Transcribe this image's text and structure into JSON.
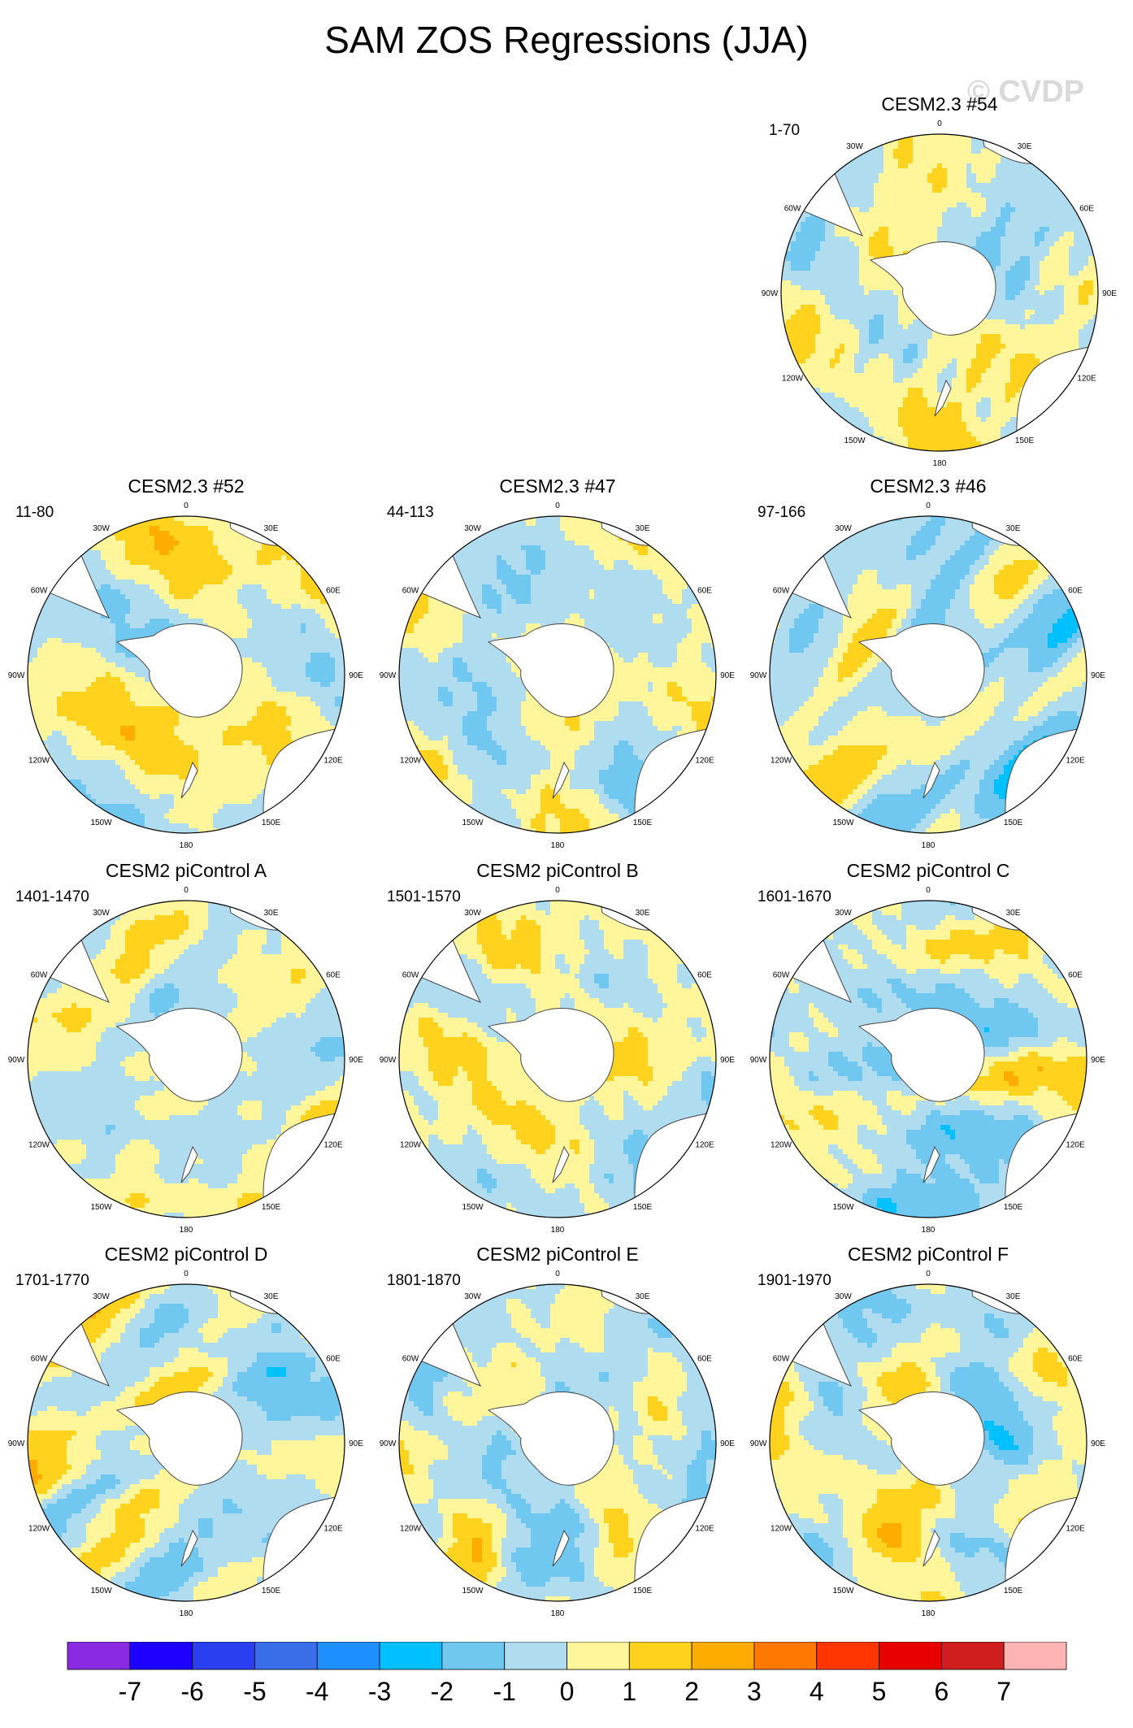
{
  "page_title": "SAM ZOS Regressions (JJA)",
  "watermark": "© CVDP",
  "chart_data": {
    "type": "heatmap",
    "title": "SAM ZOS Regressions (JJA)",
    "projection": "south-polar-stereographic",
    "longitude_labels": [
      "0",
      "30E",
      "60E",
      "90E",
      "120E",
      "150E",
      "180",
      "150W",
      "120W",
      "90W",
      "60W",
      "30W"
    ],
    "panels": [
      {
        "name": "CESM2.3 #54",
        "years": "1-70",
        "dominant": "mixed",
        "seed": 11
      },
      {
        "name": "CESM2.3 #52",
        "years": "11-80",
        "dominant": "positive",
        "seed": 23
      },
      {
        "name": "CESM2.3 #47",
        "years": "44-113",
        "dominant": "mixed",
        "seed": 37
      },
      {
        "name": "CESM2.3 #46",
        "years": "97-166",
        "dominant": "negative",
        "seed": 41
      },
      {
        "name": "CESM2 piControl A",
        "years": "1401-1470",
        "dominant": "mixed",
        "seed": 53
      },
      {
        "name": "CESM2 piControl B",
        "years": "1501-1570",
        "dominant": "positive",
        "seed": 67
      },
      {
        "name": "CESM2 piControl C",
        "years": "1601-1670",
        "dominant": "negative",
        "seed": 71
      },
      {
        "name": "CESM2 piControl D",
        "years": "1701-1770",
        "dominant": "mixed",
        "seed": 83
      },
      {
        "name": "CESM2 piControl E",
        "years": "1801-1870",
        "dominant": "negative",
        "seed": 97
      },
      {
        "name": "CESM2 piControl F",
        "years": "1901-1970",
        "dominant": "mixed",
        "seed": 101
      }
    ],
    "colorbar": {
      "levels": [
        -7,
        -6,
        -5,
        -4,
        -3,
        -2,
        -1,
        0,
        1,
        2,
        3,
        4,
        5,
        6,
        7
      ],
      "colors": [
        "#8a2be2",
        "#1e00ff",
        "#2a40f0",
        "#3a6ee8",
        "#1e8fff",
        "#00c0ff",
        "#70c8f0",
        "#b0dcf0",
        "#fff59a",
        "#ffd21e",
        "#ffac00",
        "#ff7800",
        "#ff3600",
        "#e60000",
        "#d01d1d",
        "#ffb4b4"
      ]
    }
  }
}
